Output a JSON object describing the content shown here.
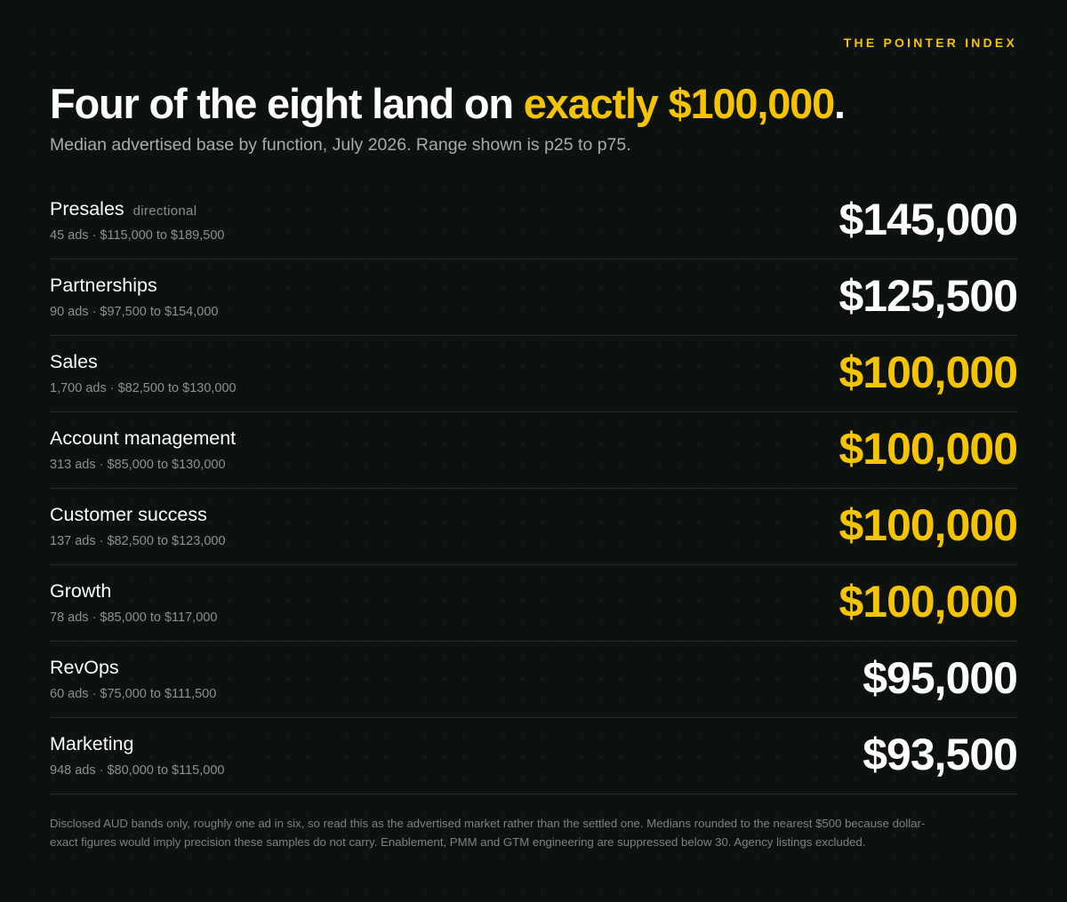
{
  "brand": "THE POINTER INDEX",
  "headline": {
    "prefix": "Four of the eight land on ",
    "highlight": "exactly $100,000",
    "suffix": "."
  },
  "subtitle": "Median advertised base by function, July 2026. Range shown is p25 to p75.",
  "colors": {
    "background": "#0d120f",
    "accent": "#f5c400",
    "default_value": "#ffffff",
    "muted_text": "#8e928e"
  },
  "chart_data": {
    "type": "table",
    "highlight_value": 100000,
    "rows": [
      {
        "name": "Presales",
        "tag": "directional",
        "meta": "45 ads · $115,000 to $189,500",
        "value": "$145,000",
        "median": 145000,
        "ads": 45,
        "p25": 115000,
        "p75": 189500
      },
      {
        "name": "Partnerships",
        "tag": "",
        "meta": "90 ads · $97,500 to $154,000",
        "value": "$125,500",
        "median": 125500,
        "ads": 90,
        "p25": 97500,
        "p75": 154000
      },
      {
        "name": "Sales",
        "tag": "",
        "meta": "1,700 ads · $82,500 to $130,000",
        "value": "$100,000",
        "median": 100000,
        "ads": 1700,
        "p25": 82500,
        "p75": 130000
      },
      {
        "name": "Account management",
        "tag": "",
        "meta": "313 ads · $85,000 to $130,000",
        "value": "$100,000",
        "median": 100000,
        "ads": 313,
        "p25": 85000,
        "p75": 130000
      },
      {
        "name": "Customer success",
        "tag": "",
        "meta": "137 ads · $82,500 to $123,000",
        "value": "$100,000",
        "median": 100000,
        "ads": 137,
        "p25": 82500,
        "p75": 123000
      },
      {
        "name": "Growth",
        "tag": "",
        "meta": "78 ads · $85,000 to $117,000",
        "value": "$100,000",
        "median": 100000,
        "ads": 78,
        "p25": 85000,
        "p75": 117000
      },
      {
        "name": "RevOps",
        "tag": "",
        "meta": "60 ads · $75,000 to $111,500",
        "value": "$95,000",
        "median": 95000,
        "ads": 60,
        "p25": 75000,
        "p75": 111500
      },
      {
        "name": "Marketing",
        "tag": "",
        "meta": "948 ads · $80,000 to $115,000",
        "value": "$93,500",
        "median": 93500,
        "ads": 948,
        "p25": 80000,
        "p75": 115000
      }
    ]
  },
  "footnote": "Disclosed AUD bands only, roughly one ad in six, so read this as the advertised market rather than the settled one. Medians rounded to the nearest $500 because dollar-exact figures would imply precision these samples do not carry. Enablement, PMM and GTM engineering are suppressed below 30. Agency listings excluded."
}
